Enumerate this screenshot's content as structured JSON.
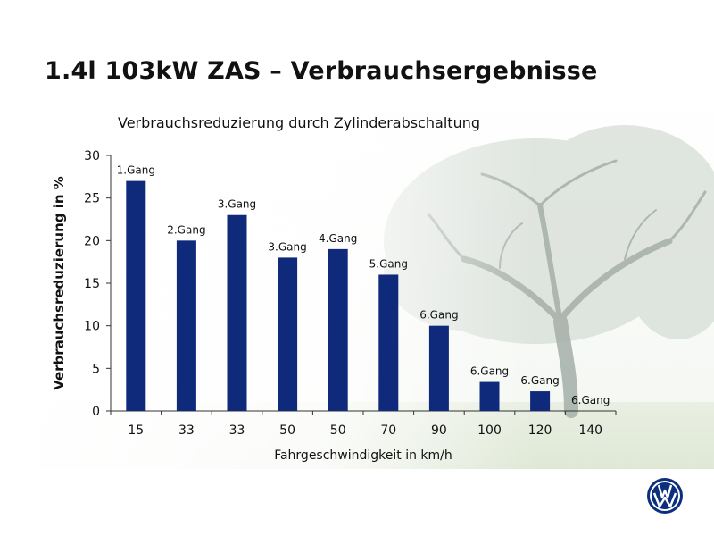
{
  "slide": {
    "title": "1.4l 103kW ZAS – Verbrauchsergebnisse",
    "logo": "volkswagen-logo",
    "background": "tree-meadow-photo"
  },
  "colors": {
    "bar": "#0f2a7a",
    "text": "#111111",
    "axis": "#333333"
  },
  "chart_data": {
    "type": "bar",
    "title": "Verbrauchsreduzierung durch Zylinderabschaltung",
    "xlabel": "Fahrgeschwindigkeit in km/h",
    "ylabel": "Verbrauchsreduzierung in %",
    "categories": [
      "15",
      "33",
      "33",
      "50",
      "50",
      "70",
      "90",
      "100",
      "120",
      "140"
    ],
    "values": [
      27,
      20,
      23,
      18,
      19,
      16,
      10,
      3.4,
      2.3,
      0
    ],
    "data_labels": [
      "1.Gang",
      "2.Gang",
      "3.Gang",
      "3.Gang",
      "4.Gang",
      "5.Gang",
      "6.Gang",
      "6.Gang",
      "6.Gang",
      "6.Gang"
    ],
    "ylim": [
      0,
      30
    ],
    "yticks": [
      0,
      5,
      10,
      15,
      20,
      25,
      30
    ],
    "grid": false,
    "legend": "none"
  }
}
